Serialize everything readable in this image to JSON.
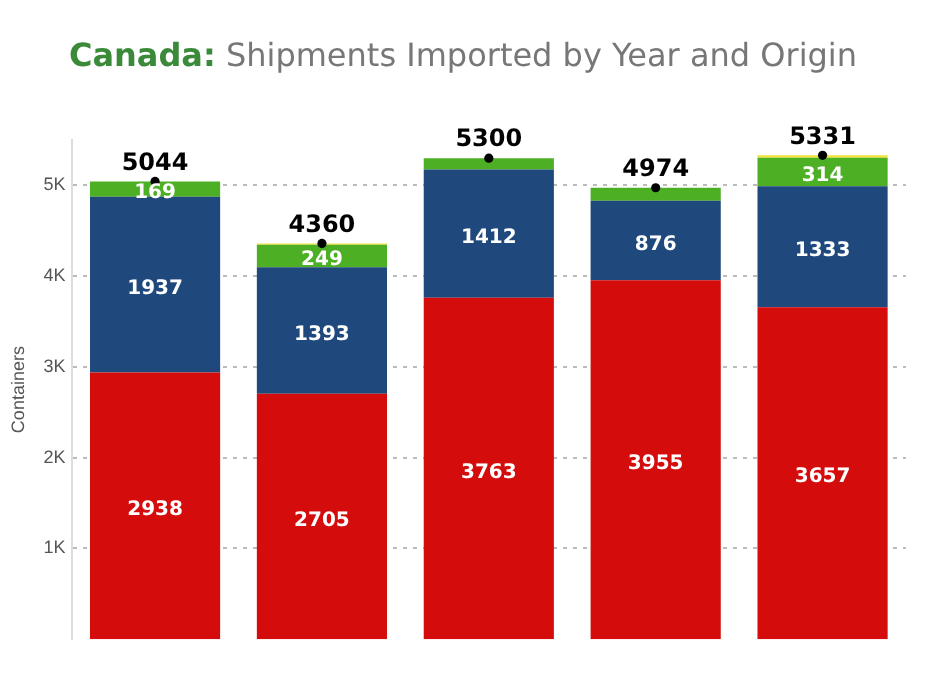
{
  "chart_data": {
    "type": "bar",
    "title": "Canada: Shipments Imported by Year and Origin",
    "ylabel": "Containers",
    "categories": [
      null,
      null,
      null,
      null,
      null
    ],
    "stacked": true,
    "series": [
      {
        "color": "#d40c0c",
        "values": [
          2938,
          2705,
          3763,
          3955,
          3657
        ],
        "value_labels": [
          "2938",
          "2705",
          "3763",
          "3955",
          "3657"
        ]
      },
      {
        "color": "#1f497d",
        "values": [
          1937,
          1393,
          1412,
          876,
          1333
        ],
        "value_labels": [
          "1937",
          "1393",
          "1412",
          "876",
          "1333"
        ]
      },
      {
        "color": "#4caf24",
        "values": [
          169,
          249,
          125,
          143,
          314
        ],
        "value_labels": [
          "169",
          "249",
          null,
          null,
          "314"
        ]
      },
      {
        "color": "#f2e33a",
        "values": [
          0,
          13,
          0,
          0,
          27
        ],
        "value_labels": [
          null,
          null,
          null,
          null,
          null
        ]
      },
      {
        "type": "scatter",
        "color": "#000000",
        "values": [
          5044,
          4360,
          5300,
          4974,
          5331
        ]
      }
    ],
    "totals": [
      "5044",
      "4360",
      "5300",
      "4974",
      "5331"
    ],
    "ylim": [
      0,
      5500
    ],
    "yticks": [
      {
        "value": 1000,
        "label": "1K"
      },
      {
        "value": 2000,
        "label": "2K"
      },
      {
        "value": 3000,
        "label": "3K"
      },
      {
        "value": 4000,
        "label": "4K"
      },
      {
        "value": 5000,
        "label": "5K"
      }
    ],
    "grid": "y",
    "legend": false
  }
}
